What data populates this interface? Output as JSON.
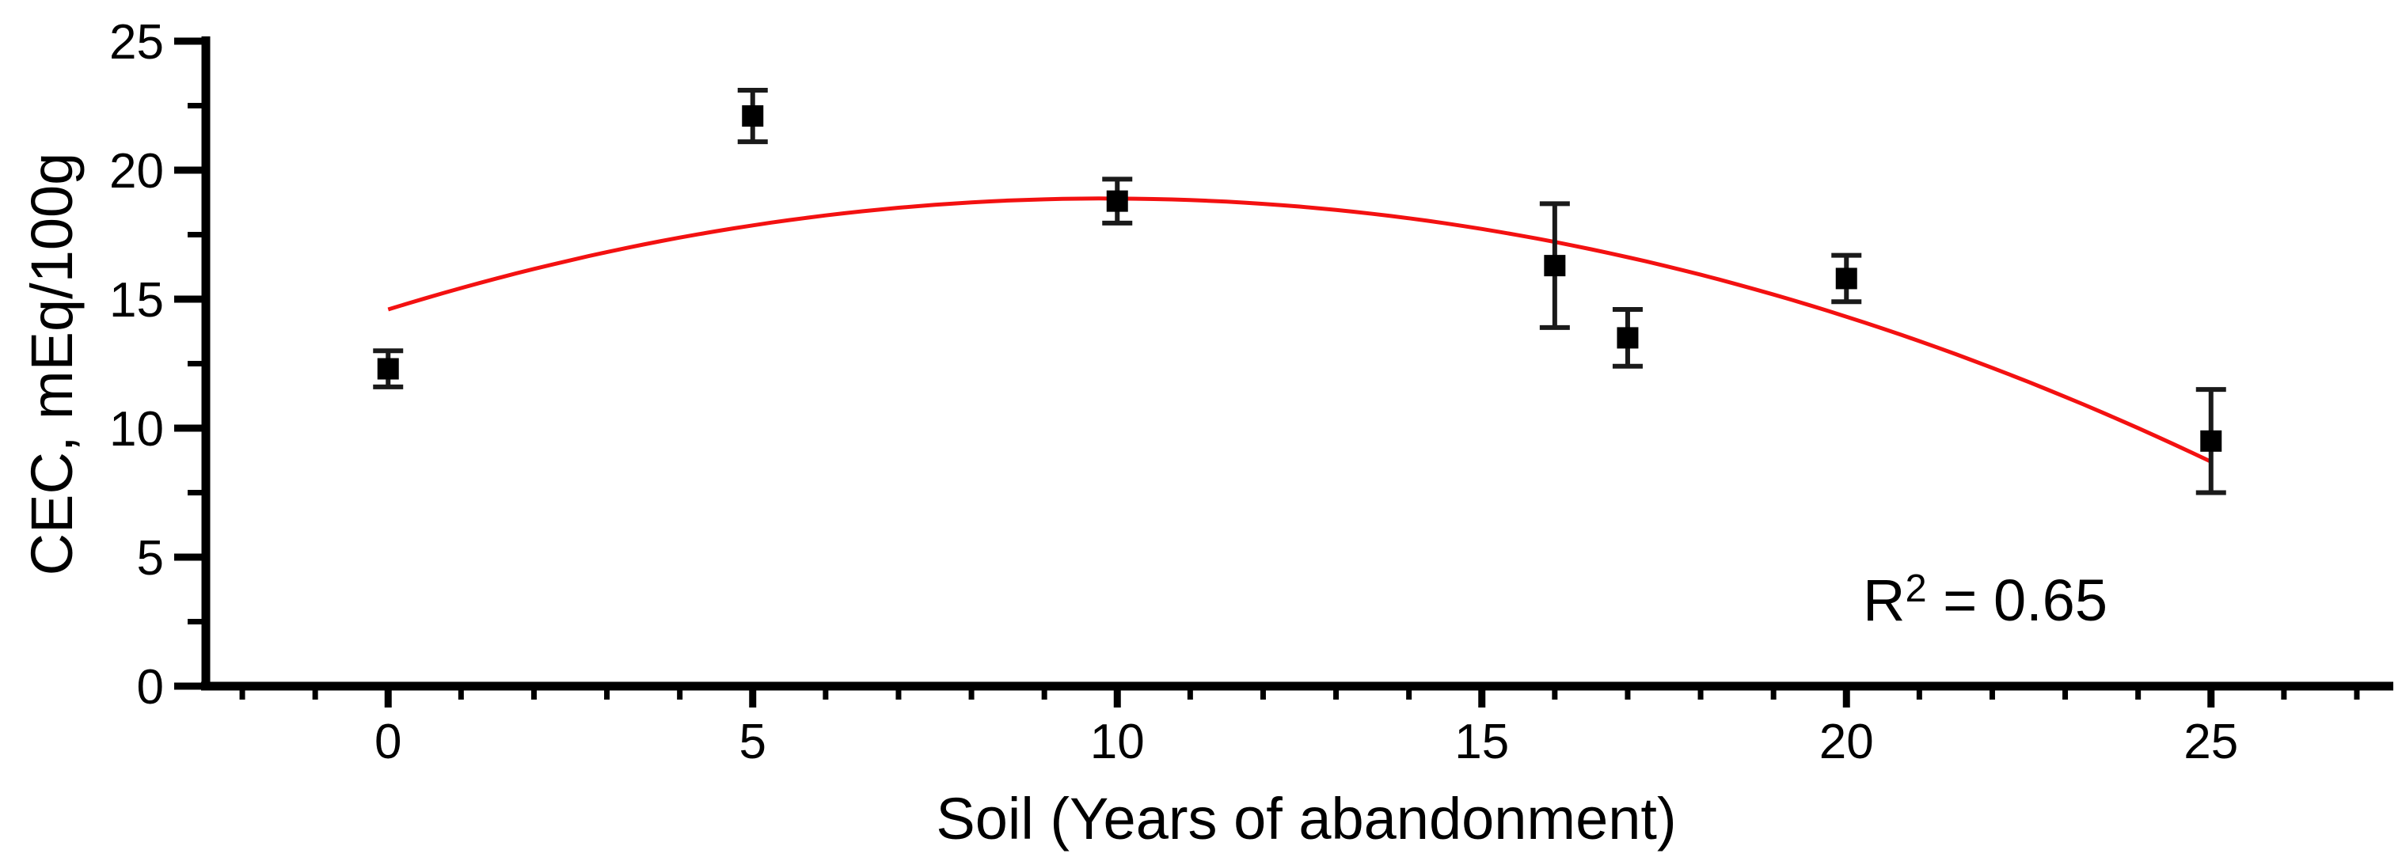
{
  "chart_data": {
    "type": "scatter",
    "title": "",
    "xlabel": "Soil (Years of abandonment)",
    "ylabel": "CEC, mEq/100g",
    "xlim": [
      -2.5,
      27.5
    ],
    "ylim": [
      0,
      25
    ],
    "x_major_ticks": [
      0,
      5,
      10,
      15,
      20,
      25
    ],
    "x_minor_interval": 1,
    "y_major_ticks": [
      0,
      5,
      10,
      15,
      20,
      25
    ],
    "y_minor_interval": 2.5,
    "grid": false,
    "legend_position": "none",
    "marker": "square",
    "marker_color": "#000000",
    "error_bar_color": "#1a1a1a",
    "series": [
      {
        "points": [
          {
            "x": 0,
            "y": 12.3,
            "err": 0.7
          },
          {
            "x": 5,
            "y": 22.1,
            "err": 1.0
          },
          {
            "x": 10,
            "y": 18.8,
            "err": 0.85
          },
          {
            "x": 16,
            "y": 16.3,
            "err": 2.4
          },
          {
            "x": 17,
            "y": 13.5,
            "err": 1.1
          },
          {
            "x": 20,
            "y": 15.8,
            "err": 0.9
          },
          {
            "x": 25,
            "y": 9.5,
            "err": 2.0
          }
        ]
      }
    ],
    "fit_curve": {
      "type": "quadratic",
      "coefficients": {
        "a": 14.6,
        "b": 0.874,
        "c": -0.0444
      },
      "x_start": 0,
      "x_end": 25,
      "color": "#f31111",
      "y_at_start": 14.6,
      "y_at_peak": 18.9,
      "y_at_end": 8.7
    },
    "annotation": {
      "prefix": "R",
      "sup": "2",
      "rest": " = 0.65"
    }
  }
}
